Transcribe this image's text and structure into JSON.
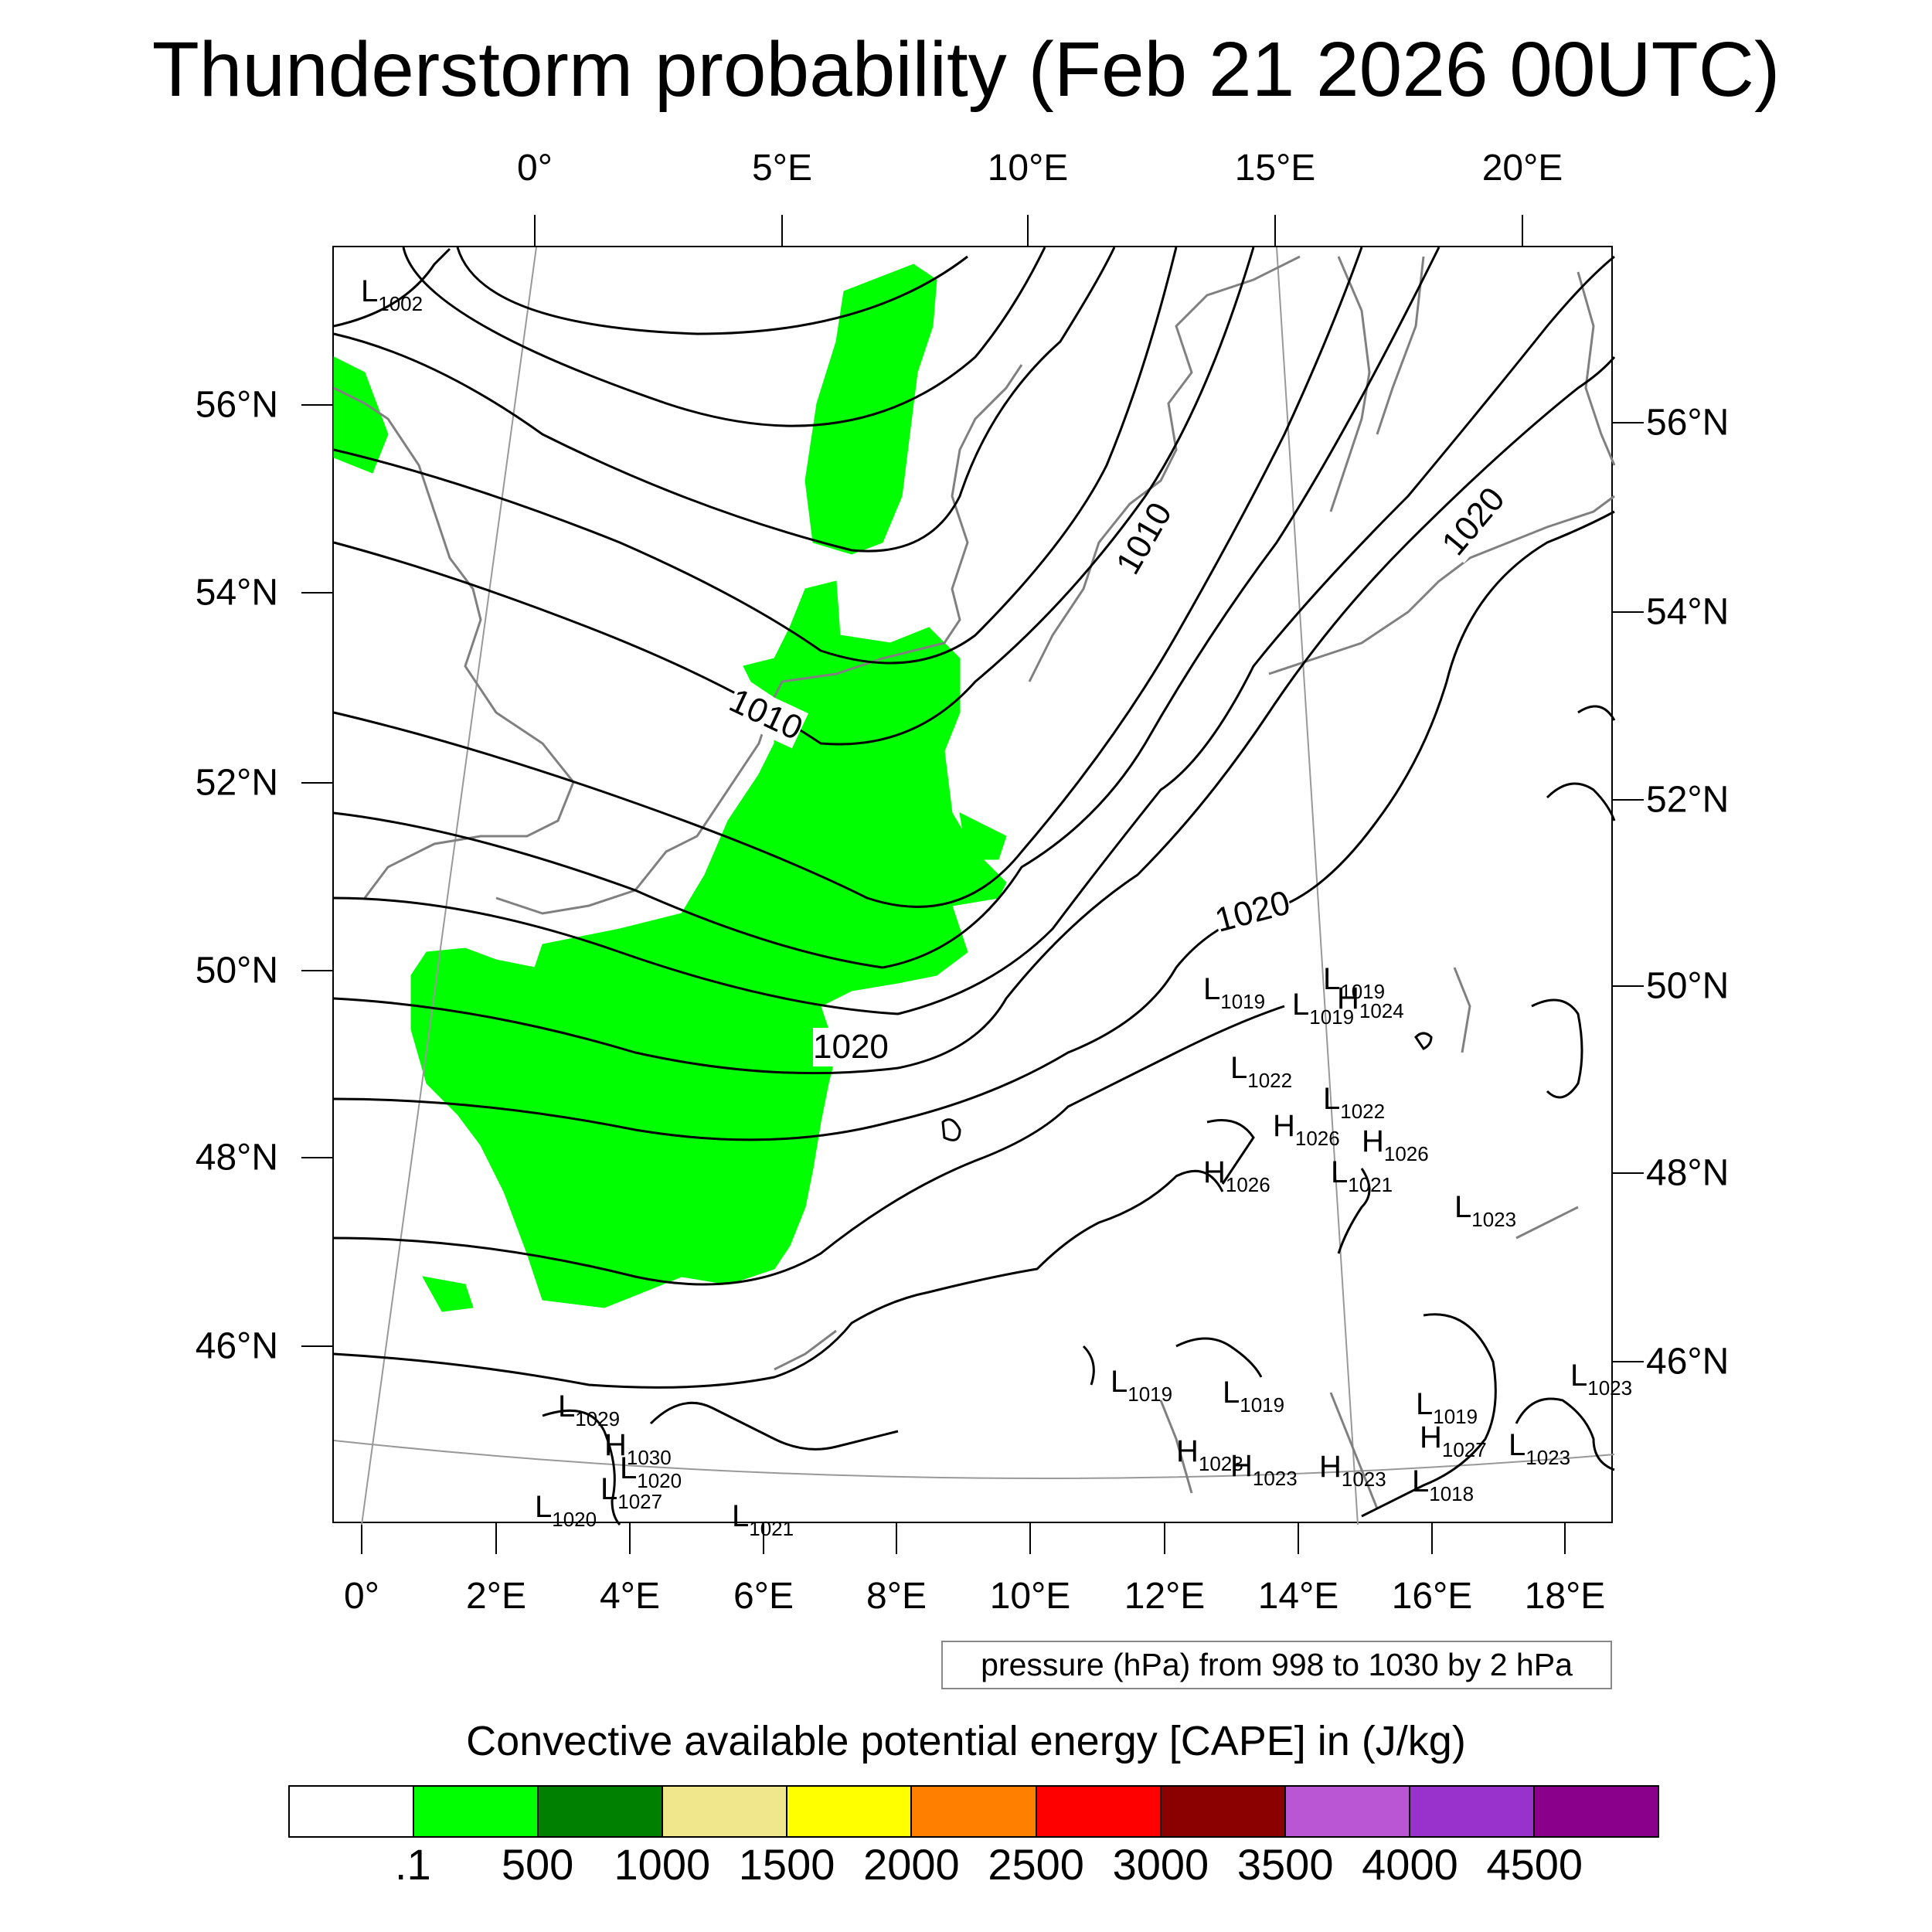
{
  "title": "Thunderstorm probability (Feb 21 2026 00UTC)",
  "axes": {
    "top_lon_labels": [
      "0°",
      "5°E",
      "10°E",
      "15°E",
      "20°E"
    ],
    "bottom_lon_labels": [
      "0°",
      "2°E",
      "4°E",
      "6°E",
      "8°E",
      "10°E",
      "12°E",
      "14°E",
      "16°E",
      "18°E"
    ],
    "left_lat_labels": [
      "56°N",
      "54°N",
      "52°N",
      "50°N",
      "48°N",
      "46°N"
    ],
    "right_lat_labels": [
      "56°N",
      "54°N",
      "52°N",
      "50°N",
      "48°N",
      "46°N"
    ]
  },
  "contour_info": "pressure (hPa) from 998 to 1030 by 2 hPa",
  "isobar_labels": [
    "1010",
    "1010",
    "1020",
    "1020",
    "1020"
  ],
  "pressure_centers": [
    {
      "type": "L",
      "value": "1002"
    },
    {
      "type": "L",
      "value": "1019"
    },
    {
      "type": "L",
      "value": "1019"
    },
    {
      "type": "H",
      "value": "1024"
    },
    {
      "type": "L",
      "value": "1019"
    },
    {
      "type": "L",
      "value": "1022"
    },
    {
      "type": "L",
      "value": "1022"
    },
    {
      "type": "H",
      "value": "1026"
    },
    {
      "type": "H",
      "value": "1026"
    },
    {
      "type": "H",
      "value": "1026"
    },
    {
      "type": "L",
      "value": "1021"
    },
    {
      "type": "L",
      "value": "1023"
    },
    {
      "type": "L",
      "value": "1029"
    },
    {
      "type": "H",
      "value": "1030"
    },
    {
      "type": "L",
      "value": "1020"
    },
    {
      "type": "L",
      "value": "1027"
    },
    {
      "type": "L",
      "value": "1020"
    },
    {
      "type": "L",
      "value": "1021"
    },
    {
      "type": "L",
      "value": "1019"
    },
    {
      "type": "L",
      "value": "1019"
    },
    {
      "type": "L",
      "value": "1019"
    },
    {
      "type": "H",
      "value": "1023"
    },
    {
      "type": "H",
      "value": "1023"
    },
    {
      "type": "H",
      "value": "1023"
    },
    {
      "type": "H",
      "value": "1027"
    },
    {
      "type": "L",
      "value": "1018"
    },
    {
      "type": "L",
      "value": "1023"
    },
    {
      "type": "L",
      "value": "1023"
    }
  ],
  "colorbar": {
    "title": "Convective available potential energy [CAPE] in (J/kg)",
    "colors": [
      "#ffffff",
      "#00ff00",
      "#008000",
      "#f0e68c",
      "#ffff00",
      "#ff8000",
      "#ff0000",
      "#8b0000",
      "#ba55d3",
      "#9932cc",
      "#8b008b"
    ],
    "labels": [
      ".1",
      "500",
      "1000",
      "1500",
      "2000",
      "2500",
      "3000",
      "3500",
      "4000",
      "4500"
    ]
  },
  "cape_fill_color": "#00ff00"
}
